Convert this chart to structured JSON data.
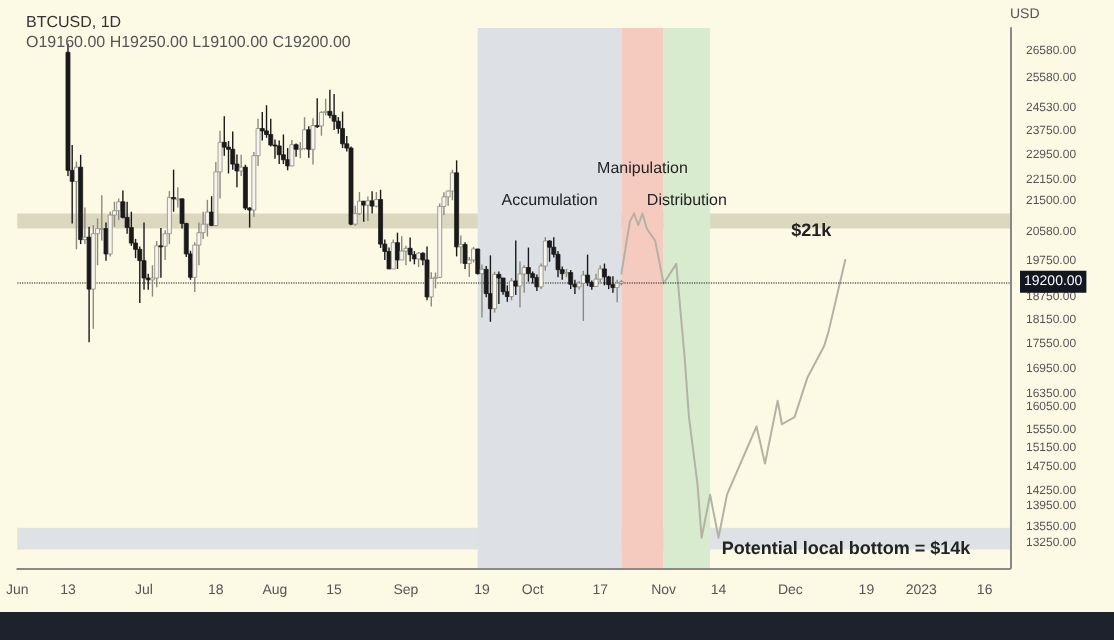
{
  "chart_data": {
    "type": "candlestick",
    "title": "BTCUSD, 1D",
    "subtitle": "O19160.00 H19250.00 L19100.00 C19200.00",
    "ylabel": "USD",
    "x": [
      "2022-06-13",
      "2022-06-14",
      "2022-06-15",
      "2022-06-16",
      "2022-06-17",
      "2022-06-18",
      "2022-06-19",
      "2022-06-20",
      "2022-06-21",
      "2022-06-22",
      "2022-06-23",
      "2022-06-24",
      "2022-06-25",
      "2022-06-26",
      "2022-06-27",
      "2022-06-28",
      "2022-06-29",
      "2022-06-30",
      "2022-07-01",
      "2022-07-02",
      "2022-07-03",
      "2022-07-04",
      "2022-07-05",
      "2022-07-06",
      "2022-07-07",
      "2022-07-08",
      "2022-07-09",
      "2022-07-10",
      "2022-07-11",
      "2022-07-12",
      "2022-07-13",
      "2022-07-14",
      "2022-07-15",
      "2022-07-16",
      "2022-07-17",
      "2022-07-18",
      "2022-07-19",
      "2022-07-20",
      "2022-07-21",
      "2022-07-22",
      "2022-07-23",
      "2022-07-24",
      "2022-07-25",
      "2022-07-26",
      "2022-07-27",
      "2022-07-28",
      "2022-07-29",
      "2022-07-30",
      "2022-07-31",
      "2022-08-01",
      "2022-08-02",
      "2022-08-03",
      "2022-08-04",
      "2022-08-05",
      "2022-08-06",
      "2022-08-07",
      "2022-08-08",
      "2022-08-09",
      "2022-08-10",
      "2022-08-11",
      "2022-08-12",
      "2022-08-13",
      "2022-08-14",
      "2022-08-15",
      "2022-08-16",
      "2022-08-17",
      "2022-08-18",
      "2022-08-19",
      "2022-08-20",
      "2022-08-21",
      "2022-08-22",
      "2022-08-23",
      "2022-08-24",
      "2022-08-25",
      "2022-08-26",
      "2022-08-27",
      "2022-08-28",
      "2022-08-29",
      "2022-08-30",
      "2022-08-31",
      "2022-09-01",
      "2022-09-02",
      "2022-09-03",
      "2022-09-04",
      "2022-09-05",
      "2022-09-06",
      "2022-09-07",
      "2022-09-08",
      "2022-09-09",
      "2022-09-10",
      "2022-09-11",
      "2022-09-12",
      "2022-09-13",
      "2022-09-14",
      "2022-09-15",
      "2022-09-16",
      "2022-09-17",
      "2022-09-18",
      "2022-09-19",
      "2022-09-20",
      "2022-09-21",
      "2022-09-22",
      "2022-09-23",
      "2022-09-24",
      "2022-09-25",
      "2022-09-26",
      "2022-09-27",
      "2022-09-28",
      "2022-09-29",
      "2022-09-30",
      "2022-10-01",
      "2022-10-02",
      "2022-10-03",
      "2022-10-04",
      "2022-10-05",
      "2022-10-06",
      "2022-10-07",
      "2022-10-08",
      "2022-10-09",
      "2022-10-10",
      "2022-10-11",
      "2022-10-12",
      "2022-10-13",
      "2022-10-14",
      "2022-10-15",
      "2022-10-16",
      "2022-10-17",
      "2022-10-18",
      "2022-10-19",
      "2022-10-20",
      "2022-10-21",
      "2022-10-22"
    ],
    "ohlc": [
      [
        26570,
        26900,
        22300,
        22480
      ],
      [
        22480,
        23300,
        20850,
        22130
      ],
      [
        22130,
        22760,
        20100,
        22580
      ],
      [
        22580,
        22980,
        20250,
        20380
      ],
      [
        20380,
        21330,
        20250,
        20450
      ],
      [
        20450,
        20750,
        17620,
        19000
      ],
      [
        19000,
        20800,
        17960,
        20550
      ],
      [
        20550,
        21000,
        19650,
        20700
      ],
      [
        20700,
        21700,
        20350,
        20700
      ],
      [
        20700,
        20880,
        19780,
        19970
      ],
      [
        19970,
        21200,
        19900,
        21100
      ],
      [
        21100,
        21500,
        20750,
        21230
      ],
      [
        21230,
        21600,
        20950,
        21500
      ],
      [
        21500,
        21850,
        21000,
        21030
      ],
      [
        21030,
        21500,
        20550,
        20730
      ],
      [
        20730,
        21200,
        20200,
        20280
      ],
      [
        20280,
        20400,
        19850,
        20100
      ],
      [
        20100,
        20180,
        18630,
        19780
      ],
      [
        19780,
        20880,
        18980,
        19300
      ],
      [
        19300,
        19420,
        18980,
        19250
      ],
      [
        19250,
        19650,
        18800,
        19300
      ],
      [
        19300,
        20340,
        19050,
        20200
      ],
      [
        20200,
        20720,
        19310,
        20190
      ],
      [
        20190,
        20650,
        19800,
        20550
      ],
      [
        20550,
        21830,
        20250,
        21630
      ],
      [
        21630,
        22500,
        21200,
        21590
      ],
      [
        21590,
        21950,
        21330,
        21590
      ],
      [
        21590,
        21600,
        20700,
        20850
      ],
      [
        20850,
        20870,
        19880,
        19970
      ],
      [
        19970,
        20060,
        19250,
        19320
      ],
      [
        19320,
        20300,
        18920,
        20220
      ],
      [
        20220,
        20880,
        19650,
        20580
      ],
      [
        20580,
        21200,
        20400,
        20830
      ],
      [
        20830,
        21560,
        20470,
        21190
      ],
      [
        21190,
        21670,
        20770,
        20790
      ],
      [
        20790,
        22750,
        20770,
        22430
      ],
      [
        22430,
        23780,
        21600,
        23390
      ],
      [
        23390,
        24270,
        22950,
        23230
      ],
      [
        23230,
        23430,
        22380,
        23160
      ],
      [
        23160,
        23750,
        22500,
        22680
      ],
      [
        22680,
        22990,
        21950,
        22460
      ],
      [
        22460,
        22980,
        22300,
        22580
      ],
      [
        22580,
        22660,
        21250,
        21310
      ],
      [
        21310,
        21340,
        20730,
        21250
      ],
      [
        21250,
        23070,
        21050,
        22950
      ],
      [
        22950,
        24180,
        22620,
        23850
      ],
      [
        23850,
        24420,
        23450,
        23770
      ],
      [
        23770,
        24650,
        23540,
        23650
      ],
      [
        23650,
        24180,
        23250,
        23300
      ],
      [
        23300,
        23480,
        22850,
        23270
      ],
      [
        23270,
        23450,
        22680,
        22980
      ],
      [
        22980,
        23650,
        22680,
        22820
      ],
      [
        22820,
        23200,
        22480,
        22620
      ],
      [
        22620,
        23470,
        22610,
        23310
      ],
      [
        23310,
        23350,
        22920,
        23160
      ],
      [
        23160,
        23400,
        22870,
        23180
      ],
      [
        23180,
        24240,
        23150,
        23810
      ],
      [
        23810,
        23930,
        22880,
        23160
      ],
      [
        23160,
        24200,
        22670,
        23950
      ],
      [
        23950,
        24900,
        23870,
        23940
      ],
      [
        23940,
        24450,
        23610,
        24400
      ],
      [
        24400,
        24880,
        24300,
        24440
      ],
      [
        24440,
        25200,
        24200,
        24300
      ],
      [
        24300,
        25050,
        23800,
        24100
      ],
      [
        24100,
        24240,
        23680,
        23850
      ],
      [
        23850,
        24430,
        23200,
        23340
      ],
      [
        23340,
        23600,
        23090,
        23200
      ],
      [
        23200,
        23250,
        20800,
        20830
      ],
      [
        20830,
        21380,
        20780,
        21140
      ],
      [
        21140,
        21800,
        21100,
        21520
      ],
      [
        21520,
        21520,
        20900,
        21400
      ],
      [
        21400,
        21660,
        20920,
        21530
      ],
      [
        21530,
        21820,
        21150,
        21370
      ],
      [
        21370,
        21800,
        21330,
        21570
      ],
      [
        21570,
        21870,
        20140,
        20250
      ],
      [
        20250,
        20380,
        19800,
        20040
      ],
      [
        20040,
        20150,
        19550,
        19550
      ],
      [
        19550,
        20380,
        19550,
        20290
      ],
      [
        20290,
        20580,
        19550,
        19800
      ],
      [
        19800,
        20480,
        19800,
        20050
      ],
      [
        20050,
        20200,
        19650,
        20130
      ],
      [
        20130,
        20440,
        19760,
        19950
      ],
      [
        19950,
        20050,
        19680,
        19830
      ],
      [
        19830,
        20020,
        19600,
        19990
      ],
      [
        19990,
        20020,
        19650,
        19800
      ],
      [
        19800,
        20180,
        18700,
        18790
      ],
      [
        18790,
        19460,
        18540,
        19290
      ],
      [
        19290,
        19450,
        19020,
        19320
      ],
      [
        19320,
        21450,
        19300,
        21360
      ],
      [
        21360,
        21790,
        21100,
        21650
      ],
      [
        21650,
        21850,
        21380,
        21830
      ],
      [
        21830,
        22500,
        21550,
        22400
      ],
      [
        22400,
        22800,
        19900,
        20170
      ],
      [
        20170,
        20500,
        19700,
        20240
      ],
      [
        20240,
        20300,
        19550,
        19700
      ],
      [
        19700,
        19880,
        19330,
        19800
      ],
      [
        19800,
        20170,
        19730,
        20110
      ],
      [
        20110,
        20120,
        19400,
        19420
      ],
      [
        19420,
        19670,
        18250,
        19540
      ],
      [
        19540,
        19630,
        18780,
        18880
      ],
      [
        18880,
        19930,
        18140,
        18480
      ],
      [
        18480,
        19470,
        18380,
        19400
      ],
      [
        19400,
        19480,
        18600,
        19300
      ],
      [
        19300,
        19300,
        18850,
        18930
      ],
      [
        18930,
        19100,
        18660,
        18800
      ],
      [
        18800,
        19300,
        18700,
        19220
      ],
      [
        19220,
        20350,
        18840,
        19080
      ],
      [
        19080,
        19760,
        18510,
        19410
      ],
      [
        19410,
        19650,
        18900,
        19590
      ],
      [
        19590,
        20150,
        19200,
        19420
      ],
      [
        19420,
        19480,
        19150,
        19310
      ],
      [
        19310,
        19400,
        18950,
        19060
      ],
      [
        19060,
        19700,
        19000,
        19630
      ],
      [
        19630,
        20450,
        19500,
        20340
      ],
      [
        20340,
        20360,
        19750,
        20160
      ],
      [
        20160,
        20450,
        19870,
        19960
      ],
      [
        19960,
        20050,
        19320,
        19530
      ],
      [
        19530,
        19620,
        19250,
        19420
      ],
      [
        19420,
        19550,
        19320,
        19450
      ],
      [
        19450,
        19520,
        19000,
        19130
      ],
      [
        19130,
        19250,
        18870,
        19060
      ],
      [
        19060,
        19220,
        18980,
        19160
      ],
      [
        19160,
        19500,
        18160,
        19380
      ],
      [
        19380,
        19950,
        19080,
        19180
      ],
      [
        19180,
        19230,
        18980,
        19070
      ],
      [
        19070,
        19420,
        19070,
        19270
      ],
      [
        19270,
        19650,
        19180,
        19550
      ],
      [
        19550,
        19700,
        19100,
        19330
      ],
      [
        19330,
        19360,
        19000,
        19120
      ],
      [
        19120,
        19350,
        18900,
        19040
      ],
      [
        19040,
        19250,
        18650,
        19160
      ],
      [
        19160,
        19250,
        19100,
        19200
      ]
    ],
    "series": [
      {
        "type": "line",
        "color": "#b4b2a4",
        "x": [
          "2022-10-22",
          "2022-10-24",
          "2022-10-25",
          "2022-10-26",
          "2022-10-27",
          "2022-10-28",
          "2022-10-30",
          "2022-11-01",
          "2022-11-04",
          "2022-11-06",
          "2022-11-07",
          "2022-11-09",
          "2022-11-10",
          "2022-11-12",
          "2022-11-14",
          "2022-11-16",
          "2022-11-18",
          "2022-11-20",
          "2022-11-23",
          "2022-11-25",
          "2022-11-28",
          "2022-11-29",
          "2022-12-02",
          "2022-12-05",
          "2022-12-09",
          "2022-12-10",
          "2022-12-14"
        ],
        "values": [
          19420,
          20900,
          21150,
          20800,
          21150,
          20700,
          20350,
          19150,
          19690,
          17220,
          15850,
          14430,
          13360,
          14200,
          13360,
          14200,
          14600,
          15010,
          15640,
          14840,
          16220,
          15690,
          15850,
          16750,
          17530,
          17870,
          19800
        ]
      }
    ],
    "marker": "none",
    "line_style": "solid",
    "log": true,
    "grid": false,
    "xlim": [
      "2022-06-01",
      "2023-01-22"
    ],
    "xticks": [
      {
        "value": "2022-06-01",
        "label": "Jun"
      },
      {
        "value": "2022-06-13",
        "label": "13"
      },
      {
        "value": "2022-07-01",
        "label": "Jul"
      },
      {
        "value": "2022-07-18",
        "label": "18"
      },
      {
        "value": "2022-08-01",
        "label": "Aug"
      },
      {
        "value": "2022-08-15",
        "label": "15"
      },
      {
        "value": "2022-09-01",
        "label": "Sep"
      },
      {
        "value": "2022-09-19",
        "label": "19"
      },
      {
        "value": "2022-10-01",
        "label": "Oct"
      },
      {
        "value": "2022-10-17",
        "label": "17"
      },
      {
        "value": "2022-11-01",
        "label": "Nov"
      },
      {
        "value": "2022-11-14",
        "label": "14"
      },
      {
        "value": "2022-12-01",
        "label": "Dec"
      },
      {
        "value": "2022-12-19",
        "label": "19"
      },
      {
        "value": "2023-01-01",
        "label": "2023"
      },
      {
        "value": "2023-01-16",
        "label": "16"
      }
    ],
    "ylim": [
      12800,
      27500
    ],
    "yticks": [
      {
        "value": 26580,
        "label": "26580.00"
      },
      {
        "value": 25580,
        "label": "25580.00"
      },
      {
        "value": 24530,
        "label": "24530.00"
      },
      {
        "value": 23750,
        "label": "23750.00"
      },
      {
        "value": 22950,
        "label": "22950.00"
      },
      {
        "value": 22150,
        "label": "22150.00"
      },
      {
        "value": 21500,
        "label": "21500.00"
      },
      {
        "value": 20580,
        "label": "20580.00"
      },
      {
        "value": 19750,
        "label": "19750.00"
      },
      {
        "value": 18750,
        "label": "18750.00"
      },
      {
        "value": 18150,
        "label": "18150.00"
      },
      {
        "value": 17550,
        "label": "17550.00"
      },
      {
        "value": 16950,
        "label": "16950.00"
      },
      {
        "value": 16350,
        "label": "16350.00"
      },
      {
        "value": 16050,
        "label": "16050.00"
      },
      {
        "value": 15550,
        "label": "15550.00"
      },
      {
        "value": 15150,
        "label": "15150.00"
      },
      {
        "value": 14750,
        "label": "14750.00"
      },
      {
        "value": 14250,
        "label": "14250.00"
      },
      {
        "value": 13950,
        "label": "13950.00"
      },
      {
        "value": 13550,
        "label": "13550.00"
      },
      {
        "value": 13250,
        "label": "13250.00"
      }
    ],
    "ref_lines": [
      {
        "axis": "y",
        "value": 19200,
        "label": "19200.00",
        "color": "#131722",
        "line_style": "dotted"
      }
    ],
    "bands": [
      {
        "axis": "y",
        "from": 20700,
        "to": 21150,
        "label": "$21k",
        "color": "#dcd8bf"
      },
      {
        "axis": "y",
        "from": 13140,
        "to": 13550,
        "label": "Potential local bottom = $14k",
        "color": "#dfe2e4"
      },
      {
        "axis": "x",
        "from": "2022-09-18",
        "to": "2022-10-22",
        "label": "Accumulation",
        "color": "#dde1e6"
      },
      {
        "axis": "x",
        "from": "2022-10-22",
        "to": "2022-11-01",
        "label": "Manipulation",
        "color": "#f6cbbf"
      },
      {
        "axis": "x",
        "from": "2022-11-01",
        "to": "2022-11-12",
        "label": "Distribution",
        "color": "#d8ebcf"
      }
    ]
  }
}
